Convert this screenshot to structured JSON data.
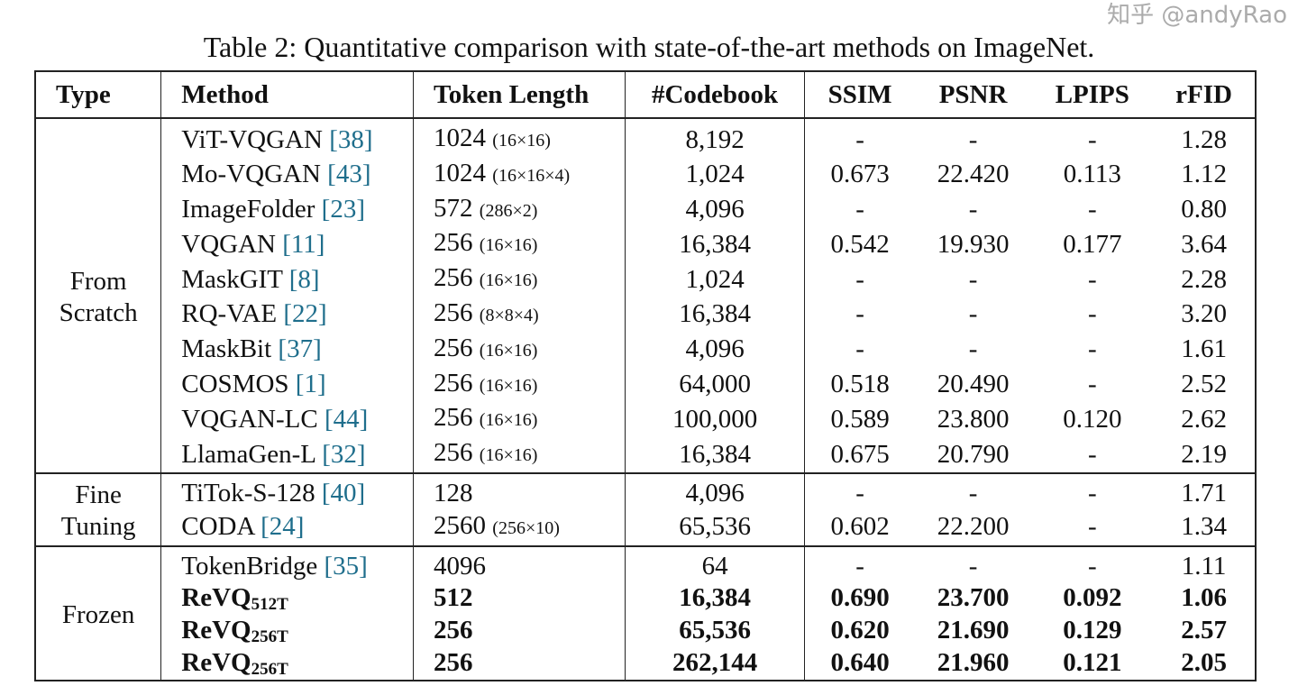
{
  "caption": "Table 2: Quantitative comparison with state-of-the-art methods on ImageNet.",
  "columns": [
    "Type",
    "Method",
    "Token Length",
    "#Codebook",
    "SSIM",
    "PSNR",
    "LPIPS",
    "rFID"
  ],
  "colors": {
    "citation": "#1f6e8c",
    "text": "#111111"
  },
  "watermark": "知乎 @andyRao",
  "sections": [
    {
      "type": "From Scratch",
      "rows": [
        {
          "method": "ViT-VQGAN",
          "cite": "[38]",
          "token": "1024",
          "shape": "(16×16)",
          "codebook": "8,192",
          "ssim": "-",
          "psnr": "-",
          "lpips": "-",
          "rfid": "1.28"
        },
        {
          "method": "Mo-VQGAN",
          "cite": "[43]",
          "token": "1024",
          "shape": "(16×16×4)",
          "codebook": "1,024",
          "ssim": "0.673",
          "psnr": "22.420",
          "lpips": "0.113",
          "rfid": "1.12"
        },
        {
          "method": "ImageFolder",
          "cite": "[23]",
          "token": "572",
          "shape": "(286×2)",
          "codebook": "4,096",
          "ssim": "-",
          "psnr": "-",
          "lpips": "-",
          "rfid": "0.80"
        },
        {
          "method": "VQGAN",
          "cite": "[11]",
          "token": "256",
          "shape": "(16×16)",
          "codebook": "16,384",
          "ssim": "0.542",
          "psnr": "19.930",
          "lpips": "0.177",
          "rfid": "3.64"
        },
        {
          "method": "MaskGIT",
          "cite": "[8]",
          "token": "256",
          "shape": "(16×16)",
          "codebook": "1,024",
          "ssim": "-",
          "psnr": "-",
          "lpips": "-",
          "rfid": "2.28"
        },
        {
          "method": "RQ-VAE",
          "cite": "[22]",
          "token": "256",
          "shape": "(8×8×4)",
          "codebook": "16,384",
          "ssim": "-",
          "psnr": "-",
          "lpips": "-",
          "rfid": "3.20"
        },
        {
          "method": "MaskBit",
          "cite": "[37]",
          "token": "256",
          "shape": "(16×16)",
          "codebook": "4,096",
          "ssim": "-",
          "psnr": "-",
          "lpips": "-",
          "rfid": "1.61"
        },
        {
          "method": "COSMOS",
          "cite": "[1]",
          "token": "256",
          "shape": "(16×16)",
          "codebook": "64,000",
          "ssim": "0.518",
          "psnr": "20.490",
          "lpips": "-",
          "rfid": "2.52"
        },
        {
          "method": "VQGAN-LC",
          "cite": "[44]",
          "token": "256",
          "shape": "(16×16)",
          "codebook": "100,000",
          "ssim": "0.589",
          "psnr": "23.800",
          "lpips": "0.120",
          "rfid": "2.62"
        },
        {
          "method": "LlamaGen-L",
          "cite": "[32]",
          "token": "256",
          "shape": "(16×16)",
          "codebook": "16,384",
          "ssim": "0.675",
          "psnr": "20.790",
          "lpips": "-",
          "rfid": "2.19"
        }
      ]
    },
    {
      "type": "Fine Tuning",
      "rows": [
        {
          "method": "TiTok-S-128",
          "cite": "[40]",
          "token": "128",
          "shape": "",
          "codebook": "4,096",
          "ssim": "-",
          "psnr": "-",
          "lpips": "-",
          "rfid": "1.71"
        },
        {
          "method": "CODA",
          "cite": "[24]",
          "token": "2560",
          "shape": "(256×10)",
          "codebook": "65,536",
          "ssim": "0.602",
          "psnr": "22.200",
          "lpips": "-",
          "rfid": "1.34"
        }
      ]
    },
    {
      "type": "Frozen",
      "rows": [
        {
          "method": "TokenBridge",
          "cite": "[35]",
          "token": "4096",
          "shape": "",
          "codebook": "64",
          "ssim": "-",
          "psnr": "-",
          "lpips": "-",
          "rfid": "1.11"
        },
        {
          "method": "ReVQ",
          "sub": "512T",
          "bold": true,
          "token": "512",
          "shape": "",
          "codebook": "16,384",
          "ssim": "0.690",
          "psnr": "23.700",
          "lpips": "0.092",
          "rfid": "1.06"
        },
        {
          "method": "ReVQ",
          "sub": "256T",
          "bold": true,
          "token": "256",
          "shape": "",
          "codebook": "65,536",
          "ssim": "0.620",
          "psnr": "21.690",
          "lpips": "0.129",
          "rfid": "2.57"
        },
        {
          "method": "ReVQ",
          "sub": "256T",
          "bold": true,
          "token": "256",
          "shape": "",
          "codebook": "262,144",
          "ssim": "0.640",
          "psnr": "21.960",
          "lpips": "0.121",
          "rfid": "2.05"
        }
      ]
    }
  ]
}
